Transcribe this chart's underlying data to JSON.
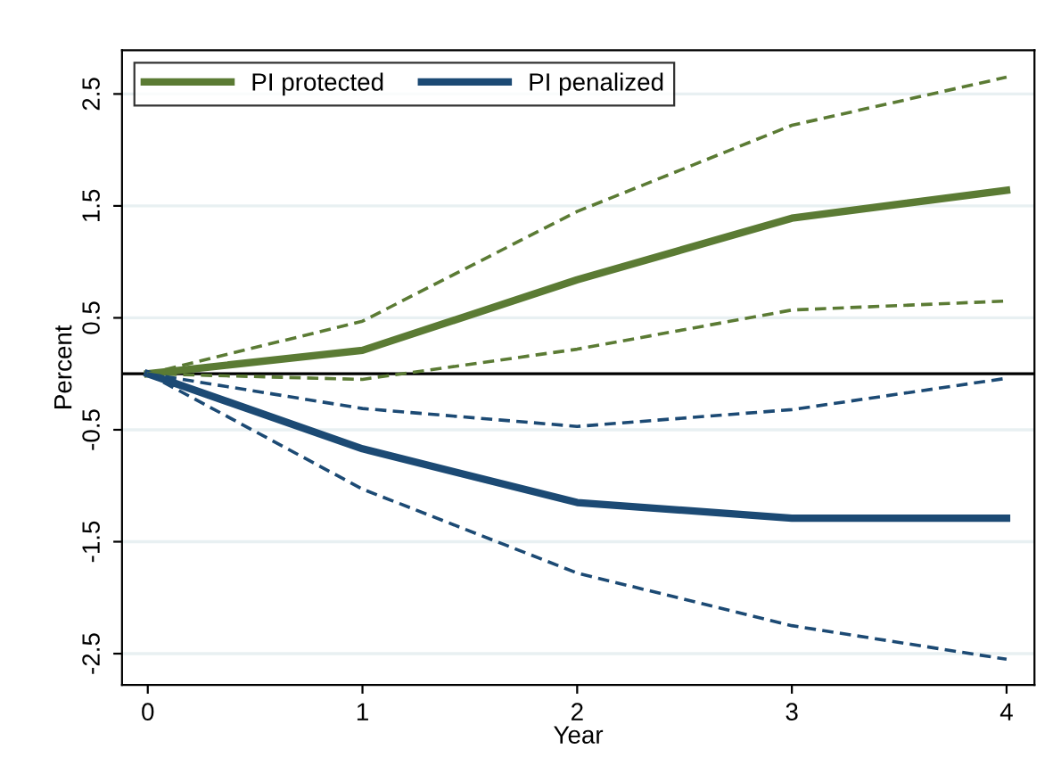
{
  "chart_data": {
    "type": "line",
    "xlabel": "Year",
    "ylabel": "Percent",
    "x": [
      0,
      1,
      2,
      3,
      4
    ],
    "series": [
      {
        "name": "PI protected",
        "color": "#5b7b34",
        "line_style": "solid",
        "values": [
          0,
          0.21,
          0.84,
          1.39,
          1.64
        ]
      },
      {
        "name": "PI penalized",
        "color": "#1c4a74",
        "line_style": "solid",
        "values": [
          0,
          -0.67,
          -1.15,
          -1.29,
          -1.29
        ]
      },
      {
        "color": "#5b7b34",
        "line_style": "dashed",
        "values": [
          0,
          0.47,
          1.45,
          2.22,
          2.65
        ]
      },
      {
        "color": "#5b7b34",
        "line_style": "dashed",
        "values": [
          0,
          -0.05,
          0.22,
          0.57,
          0.65
        ]
      },
      {
        "color": "#1c4a74",
        "line_style": "dashed",
        "values": [
          0,
          -0.31,
          -0.47,
          -0.32,
          -0.04
        ]
      },
      {
        "color": "#1c4a74",
        "line_style": "dashed",
        "values": [
          0,
          -1.03,
          -1.78,
          -2.25,
          -2.55
        ]
      }
    ],
    "xlim": [
      -0.12,
      4.13
    ],
    "xticks": [
      0,
      1,
      2,
      3,
      4
    ],
    "ylim": [
      -2.78,
      2.89
    ],
    "yticks": [
      -2.5,
      -1.5,
      -0.5,
      0.5,
      1.5,
      2.5
    ],
    "ref_lines": [
      {
        "axis": "y",
        "value": 0,
        "color": "#000000"
      }
    ],
    "grid": "y",
    "legend": "top left"
  }
}
